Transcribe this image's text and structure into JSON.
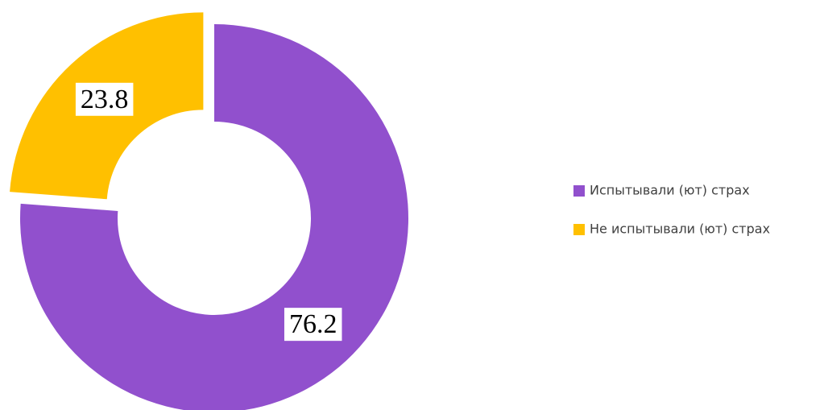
{
  "chart_data": {
    "type": "donut",
    "categories": [
      "Испытывали (ют) страх",
      "Не испытывали (ют) страх"
    ],
    "values": [
      76.2,
      23.8
    ],
    "colors": [
      "#9150cd",
      "#ffc000"
    ],
    "legend": "right"
  }
}
